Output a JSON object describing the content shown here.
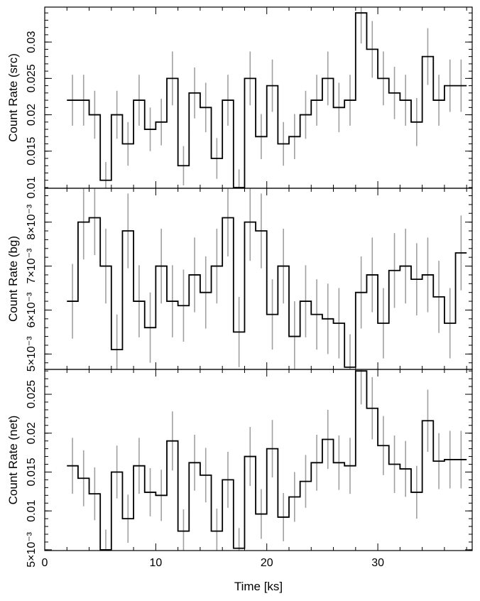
{
  "chart_data": [
    {
      "type": "line",
      "panel": "source",
      "ylabel": "Count Rate (src)",
      "xlabel": "",
      "xlim": [
        0,
        38.5
      ],
      "ylim": [
        0.0099,
        0.0348
      ],
      "yticks": [
        0.015,
        0.02,
        0.025,
        0.03
      ],
      "ytick_labels": [
        "0.015",
        "0.02",
        "0.025",
        "0.03"
      ],
      "edge_tick": {
        "value": 0.01,
        "label": "0.01"
      },
      "x": [
        2.5,
        3.5,
        4.5,
        5.5,
        6.5,
        7.5,
        8.5,
        9.5,
        10.5,
        11.5,
        12.5,
        13.5,
        14.5,
        15.5,
        16.5,
        17.5,
        18.5,
        19.5,
        20.5,
        21.5,
        22.5,
        23.5,
        24.5,
        25.5,
        26.5,
        27.5,
        28.5,
        29.5,
        30.5,
        31.5,
        32.5,
        33.5,
        34.5,
        35.5,
        36.5,
        37.5
      ],
      "y": [
        0.022,
        0.022,
        0.02,
        0.011,
        0.02,
        0.016,
        0.022,
        0.018,
        0.019,
        0.025,
        0.013,
        0.023,
        0.021,
        0.014,
        0.022,
        0.01,
        0.025,
        0.017,
        0.024,
        0.016,
        0.017,
        0.02,
        0.022,
        0.025,
        0.021,
        0.022,
        0.034,
        0.029,
        0.025,
        0.023,
        0.022,
        0.019,
        0.028,
        0.022,
        0.024,
        0.024
      ],
      "yerr": [
        0.0035,
        0.0035,
        0.0033,
        0.0025,
        0.0033,
        0.003,
        0.0035,
        0.003,
        0.0032,
        0.0037,
        0.0027,
        0.0035,
        0.0034,
        0.0028,
        0.0035,
        0.0025,
        0.0037,
        0.0031,
        0.0036,
        0.003,
        0.0031,
        0.0033,
        0.0035,
        0.0037,
        0.0034,
        0.0035,
        0.0042,
        0.0039,
        0.0037,
        0.0036,
        0.0035,
        0.0033,
        0.0039,
        0.0035,
        0.0036,
        0.0036
      ]
    },
    {
      "type": "line",
      "panel": "background",
      "ylabel": "Count Rate (bg)",
      "xlabel": "",
      "xlim": [
        0,
        38.5
      ],
      "ylim": [
        0.00465,
        0.00877
      ],
      "yticks": [
        0.005,
        0.006,
        0.007,
        0.008
      ],
      "ytick_labels": [
        "5×10⁻³",
        "6×10⁻³",
        "7×10⁻³",
        "8×10⁻³"
      ],
      "x": [
        2.5,
        3.5,
        4.5,
        5.5,
        6.5,
        7.5,
        8.5,
        9.5,
        10.5,
        11.5,
        12.5,
        13.5,
        14.5,
        15.5,
        16.5,
        17.5,
        18.5,
        19.5,
        20.5,
        21.5,
        22.5,
        23.5,
        24.5,
        25.5,
        26.5,
        27.5,
        28.5,
        29.5,
        30.5,
        31.5,
        32.5,
        33.5,
        34.5,
        35.5,
        36.5,
        37.5
      ],
      "y": [
        0.0062,
        0.008,
        0.0081,
        0.007,
        0.0051,
        0.0078,
        0.0062,
        0.0056,
        0.007,
        0.0062,
        0.0061,
        0.0068,
        0.0064,
        0.007,
        0.0081,
        0.0055,
        0.008,
        0.0078,
        0.0059,
        0.007,
        0.0054,
        0.0062,
        0.0059,
        0.0058,
        0.0057,
        0.0047,
        0.0064,
        0.0068,
        0.0057,
        0.0069,
        0.007,
        0.0067,
        0.0068,
        0.0063,
        0.0057,
        0.0073
      ],
      "yerr": [
        0.00085,
        0.00085,
        0.00085,
        0.00085,
        0.0008,
        0.00085,
        0.00082,
        0.0008,
        0.00085,
        0.00082,
        0.00082,
        0.00085,
        0.00082,
        0.00085,
        0.00088,
        0.0008,
        0.00088,
        0.00085,
        0.0008,
        0.00085,
        0.0008,
        0.00082,
        0.0008,
        0.0008,
        0.0008,
        0.00075,
        0.00082,
        0.00085,
        0.0008,
        0.00085,
        0.00085,
        0.00082,
        0.00085,
        0.00082,
        0.0008,
        0.00085
      ]
    },
    {
      "type": "line",
      "panel": "net",
      "ylabel": "Count Rate (net)",
      "xlabel": "Time [ks]",
      "xlim": [
        0,
        38.5
      ],
      "ylim": [
        0.0049,
        0.0282
      ],
      "xticks": [
        0,
        10,
        20,
        30
      ],
      "xtick_labels": [
        "0",
        "10",
        "20",
        "30"
      ],
      "yticks": [
        0.005,
        0.01,
        0.015,
        0.02,
        0.025
      ],
      "ytick_labels": [
        "5×10⁻³",
        "0.01",
        "0.015",
        "0.02",
        "0.025"
      ],
      "x": [
        2.5,
        3.5,
        4.5,
        5.5,
        6.5,
        7.5,
        8.5,
        9.5,
        10.5,
        11.5,
        12.5,
        13.5,
        14.5,
        15.5,
        16.5,
        17.5,
        18.5,
        19.5,
        20.5,
        21.5,
        22.5,
        23.5,
        24.5,
        25.5,
        26.5,
        27.5,
        28.5,
        29.5,
        30.5,
        31.5,
        32.5,
        33.5,
        34.5,
        35.5,
        36.5,
        37.5
      ],
      "y": [
        0.0158,
        0.0142,
        0.0122,
        0.005,
        0.015,
        0.009,
        0.0158,
        0.0124,
        0.012,
        0.019,
        0.0074,
        0.0162,
        0.0146,
        0.0074,
        0.014,
        0.0052,
        0.017,
        0.0096,
        0.018,
        0.0092,
        0.0118,
        0.0138,
        0.0162,
        0.0192,
        0.0162,
        0.0158,
        0.028,
        0.0232,
        0.0184,
        0.016,
        0.0154,
        0.0124,
        0.0216,
        0.0164,
        0.0166,
        0.0166
      ],
      "yerr": [
        0.0036,
        0.0036,
        0.0034,
        0.0026,
        0.0034,
        0.0031,
        0.0036,
        0.0031,
        0.0033,
        0.0038,
        0.0028,
        0.0036,
        0.0035,
        0.0029,
        0.0036,
        0.0026,
        0.0038,
        0.0032,
        0.0037,
        0.0031,
        0.0032,
        0.0034,
        0.0036,
        0.0038,
        0.0035,
        0.0036,
        0.0043,
        0.004,
        0.0038,
        0.0037,
        0.0036,
        0.0034,
        0.004,
        0.0036,
        0.0037,
        0.0037
      ]
    }
  ],
  "colors": {
    "line": "#000000",
    "errorbar": "#a0a0a0",
    "frame": "#000000"
  }
}
